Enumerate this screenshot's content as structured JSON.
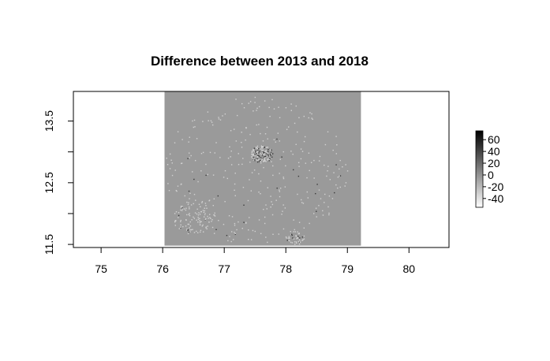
{
  "chart_data": {
    "type": "heatmap",
    "title": "Difference between 2013 and 2018",
    "xlabel": "",
    "ylabel": "",
    "xlim": [
      74.55,
      80.65
    ],
    "ylim": [
      11.45,
      13.98
    ],
    "x_ticks": [
      75,
      76,
      77,
      78,
      79,
      80
    ],
    "y_ticks": [
      11.5,
      12.5,
      13.5
    ],
    "y_minor_ticks": [
      12,
      13
    ],
    "raster_extent": {
      "xmin": 76.03,
      "xmax": 79.22,
      "ymin": 11.48,
      "ymax": 13.98
    },
    "background_value": 0,
    "grid": false,
    "legend": {
      "placement": "right",
      "range": [
        -55,
        75
      ],
      "ticks": [
        -40,
        -20,
        0,
        20,
        40,
        60
      ],
      "colors": [
        "#ffffff",
        "#000000"
      ]
    },
    "colors": {
      "background_cell": "#9a9a9a",
      "light_pixel": "#d2d2d2",
      "dark_pixel": "#3a3a3a",
      "box": "#000000"
    }
  }
}
